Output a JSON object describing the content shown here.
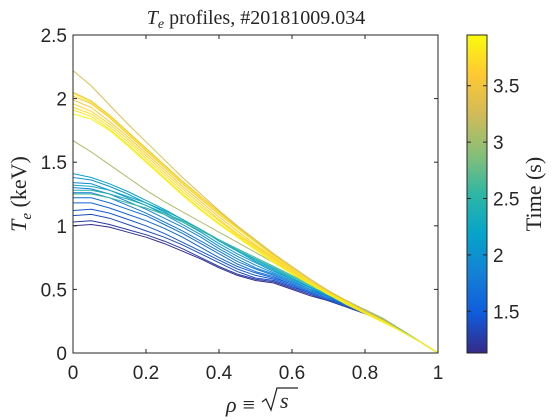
{
  "chart_data": {
    "type": "line",
    "title": {
      "var": "T",
      "sub": "e",
      "rest": " profiles, #20181009.034"
    },
    "xlabel": {
      "sym": "ρ",
      "eq": "≡",
      "root": "s"
    },
    "ylabel": {
      "var": "T",
      "sub": "e",
      "unit": " (keV)"
    },
    "xlim": [
      0,
      1
    ],
    "ylim": [
      0,
      2.5
    ],
    "xticks": [
      0,
      0.2,
      0.4,
      0.6,
      0.8,
      1
    ],
    "xtick_labels": [
      "0",
      "0.2",
      "0.4",
      "0.6",
      "0.8",
      "1"
    ],
    "yticks": [
      0,
      0.5,
      1,
      1.5,
      2,
      2.5
    ],
    "ytick_labels": [
      "0",
      "0.5",
      "1",
      "1.5",
      "2",
      "2.5"
    ],
    "grid": false,
    "x": [
      0,
      0.05,
      0.1,
      0.15,
      0.2,
      0.25,
      0.3,
      0.35,
      0.4,
      0.45,
      0.5,
      0.55,
      0.6,
      0.65,
      0.7,
      0.75,
      0.8,
      0.85,
      0.9,
      0.95,
      1
    ],
    "series": [
      {
        "time": 1.15,
        "values": [
          1.0,
          1.01,
          0.99,
          0.95,
          0.91,
          0.86,
          0.8,
          0.74,
          0.67,
          0.61,
          0.57,
          0.55,
          0.5,
          0.45,
          0.41,
          0.36,
          0.31,
          0.25,
          0.17,
          0.09,
          0
        ]
      },
      {
        "time": 1.25,
        "values": [
          1.03,
          1.04,
          1.01,
          0.97,
          0.93,
          0.88,
          0.82,
          0.75,
          0.68,
          0.62,
          0.58,
          0.56,
          0.51,
          0.46,
          0.41,
          0.36,
          0.31,
          0.25,
          0.17,
          0.09,
          0
        ]
      },
      {
        "time": 1.35,
        "values": [
          1.08,
          1.09,
          1.06,
          1.01,
          0.96,
          0.91,
          0.85,
          0.78,
          0.71,
          0.64,
          0.59,
          0.57,
          0.52,
          0.47,
          0.42,
          0.37,
          0.31,
          0.25,
          0.17,
          0.09,
          0
        ]
      },
      {
        "time": 1.45,
        "values": [
          1.12,
          1.13,
          1.1,
          1.05,
          1.0,
          0.94,
          0.87,
          0.8,
          0.73,
          0.66,
          0.61,
          0.58,
          0.53,
          0.47,
          0.42,
          0.37,
          0.31,
          0.25,
          0.17,
          0.09,
          0
        ]
      },
      {
        "time": 1.55,
        "values": [
          1.18,
          1.18,
          1.14,
          1.09,
          1.04,
          0.98,
          0.91,
          0.83,
          0.75,
          0.68,
          0.63,
          0.59,
          0.54,
          0.48,
          0.43,
          0.37,
          0.32,
          0.25,
          0.17,
          0.09,
          0
        ]
      },
      {
        "time": 1.65,
        "values": [
          1.22,
          1.22,
          1.18,
          1.13,
          1.08,
          1.01,
          0.94,
          0.86,
          0.78,
          0.7,
          0.64,
          0.6,
          0.54,
          0.48,
          0.43,
          0.38,
          0.32,
          0.25,
          0.17,
          0.09,
          0
        ]
      },
      {
        "time": 1.75,
        "values": [
          1.26,
          1.26,
          1.22,
          1.16,
          1.1,
          1.03,
          0.96,
          0.88,
          0.8,
          0.72,
          0.66,
          0.61,
          0.55,
          0.49,
          0.44,
          0.38,
          0.32,
          0.26,
          0.18,
          0.09,
          0
        ]
      },
      {
        "time": 1.85,
        "values": [
          1.3,
          1.29,
          1.25,
          1.19,
          1.13,
          1.06,
          0.99,
          0.91,
          0.82,
          0.74,
          0.67,
          0.62,
          0.56,
          0.5,
          0.44,
          0.38,
          0.32,
          0.26,
          0.18,
          0.09,
          0
        ]
      },
      {
        "time": 1.95,
        "values": [
          1.34,
          1.33,
          1.28,
          1.22,
          1.16,
          1.09,
          1.01,
          0.93,
          0.84,
          0.76,
          0.69,
          0.63,
          0.57,
          0.5,
          0.45,
          0.39,
          0.33,
          0.26,
          0.18,
          0.09,
          0
        ]
      },
      {
        "time": 2.05,
        "values": [
          1.38,
          1.36,
          1.31,
          1.25,
          1.18,
          1.11,
          1.03,
          0.95,
          0.86,
          0.78,
          0.71,
          0.64,
          0.58,
          0.51,
          0.45,
          0.39,
          0.33,
          0.26,
          0.18,
          0.09,
          0
        ]
      },
      {
        "time": 2.15,
        "values": [
          1.41,
          1.38,
          1.33,
          1.27,
          1.2,
          1.13,
          1.05,
          0.97,
          0.88,
          0.8,
          0.72,
          0.65,
          0.58,
          0.52,
          0.46,
          0.4,
          0.33,
          0.26,
          0.18,
          0.09,
          0
        ]
      },
      {
        "time": 2.3,
        "values": [
          1.32,
          1.31,
          1.28,
          1.23,
          1.18,
          1.12,
          1.05,
          0.97,
          0.89,
          0.81,
          0.73,
          0.66,
          0.59,
          0.52,
          0.46,
          0.4,
          0.34,
          0.27,
          0.18,
          0.09,
          0
        ]
      },
      {
        "time": 2.45,
        "values": [
          1.28,
          1.28,
          1.25,
          1.21,
          1.16,
          1.1,
          1.04,
          0.97,
          0.89,
          0.81,
          0.74,
          0.67,
          0.6,
          0.53,
          0.47,
          0.4,
          0.34,
          0.27,
          0.18,
          0.09,
          0
        ]
      },
      {
        "time": 2.6,
        "values": [
          1.25,
          1.25,
          1.22,
          1.18,
          1.14,
          1.09,
          1.03,
          0.96,
          0.89,
          0.82,
          0.75,
          0.68,
          0.61,
          0.54,
          0.47,
          0.41,
          0.34,
          0.27,
          0.18,
          0.09,
          0
        ]
      },
      {
        "time": 3.05,
        "values": [
          1.67,
          1.58,
          1.48,
          1.38,
          1.28,
          1.19,
          1.11,
          1.03,
          0.95,
          0.87,
          0.79,
          0.71,
          0.63,
          0.55,
          0.48,
          0.41,
          0.34,
          0.27,
          0.18,
          0.09,
          0
        ]
      },
      {
        "time": 3.35,
        "values": [
          2.22,
          2.1,
          1.95,
          1.8,
          1.66,
          1.52,
          1.38,
          1.25,
          1.12,
          1.0,
          0.89,
          0.78,
          0.68,
          0.58,
          0.49,
          0.41,
          0.33,
          0.26,
          0.17,
          0.09,
          0
        ]
      },
      {
        "time": 3.45,
        "values": [
          2.05,
          1.98,
          1.87,
          1.74,
          1.61,
          1.48,
          1.35,
          1.23,
          1.11,
          0.99,
          0.88,
          0.77,
          0.67,
          0.57,
          0.48,
          0.4,
          0.33,
          0.25,
          0.17,
          0.09,
          0
        ]
      },
      {
        "time": 3.55,
        "values": [
          2.02,
          1.96,
          1.85,
          1.72,
          1.59,
          1.46,
          1.33,
          1.21,
          1.09,
          0.98,
          0.87,
          0.76,
          0.66,
          0.56,
          0.48,
          0.4,
          0.32,
          0.25,
          0.17,
          0.09,
          0
        ]
      },
      {
        "time": 3.6,
        "values": [
          1.99,
          1.93,
          1.82,
          1.7,
          1.57,
          1.44,
          1.31,
          1.19,
          1.07,
          0.96,
          0.85,
          0.75,
          0.65,
          0.56,
          0.47,
          0.4,
          0.32,
          0.25,
          0.17,
          0.09,
          0
        ]
      },
      {
        "time": 3.7,
        "values": [
          1.96,
          1.9,
          1.8,
          1.68,
          1.55,
          1.42,
          1.29,
          1.17,
          1.05,
          0.94,
          0.84,
          0.74,
          0.64,
          0.55,
          0.47,
          0.39,
          0.32,
          0.25,
          0.17,
          0.09,
          0
        ]
      },
      {
        "time": 3.75,
        "values": [
          1.93,
          1.88,
          1.78,
          1.66,
          1.53,
          1.4,
          1.27,
          1.15,
          1.04,
          0.93,
          0.83,
          0.73,
          0.63,
          0.55,
          0.46,
          0.39,
          0.32,
          0.25,
          0.17,
          0.09,
          0
        ]
      },
      {
        "time": 3.8,
        "values": [
          1.91,
          1.86,
          1.76,
          1.64,
          1.51,
          1.38,
          1.25,
          1.13,
          1.02,
          0.92,
          0.82,
          0.72,
          0.63,
          0.54,
          0.46,
          0.39,
          0.32,
          0.25,
          0.17,
          0.09,
          0
        ]
      },
      {
        "time": 3.85,
        "values": [
          2.04,
          1.97,
          1.86,
          1.73,
          1.6,
          1.47,
          1.34,
          1.22,
          1.1,
          0.98,
          0.87,
          0.76,
          0.66,
          0.56,
          0.47,
          0.4,
          0.32,
          0.25,
          0.17,
          0.09,
          0
        ]
      },
      {
        "time": 3.9,
        "values": [
          1.88,
          1.84,
          1.75,
          1.63,
          1.5,
          1.37,
          1.24,
          1.12,
          1.01,
          0.91,
          0.81,
          0.71,
          0.62,
          0.54,
          0.46,
          0.38,
          0.31,
          0.24,
          0.17,
          0.09,
          0
        ]
      }
    ],
    "colorbar": {
      "label": "Time (s)",
      "range": [
        1.13,
        3.95
      ],
      "ticks": [
        1.5,
        2,
        2.5,
        3,
        3.5
      ],
      "tick_labels": [
        "1.5",
        "2",
        "2.5",
        "3",
        "3.5"
      ],
      "colormap": "parula",
      "stops": [
        "#352a87",
        "#0f5cdd",
        "#1481d6",
        "#06a4ca",
        "#2eb7a4",
        "#87bf77",
        "#d1bb59",
        "#fec832",
        "#f9fb0e"
      ]
    }
  }
}
